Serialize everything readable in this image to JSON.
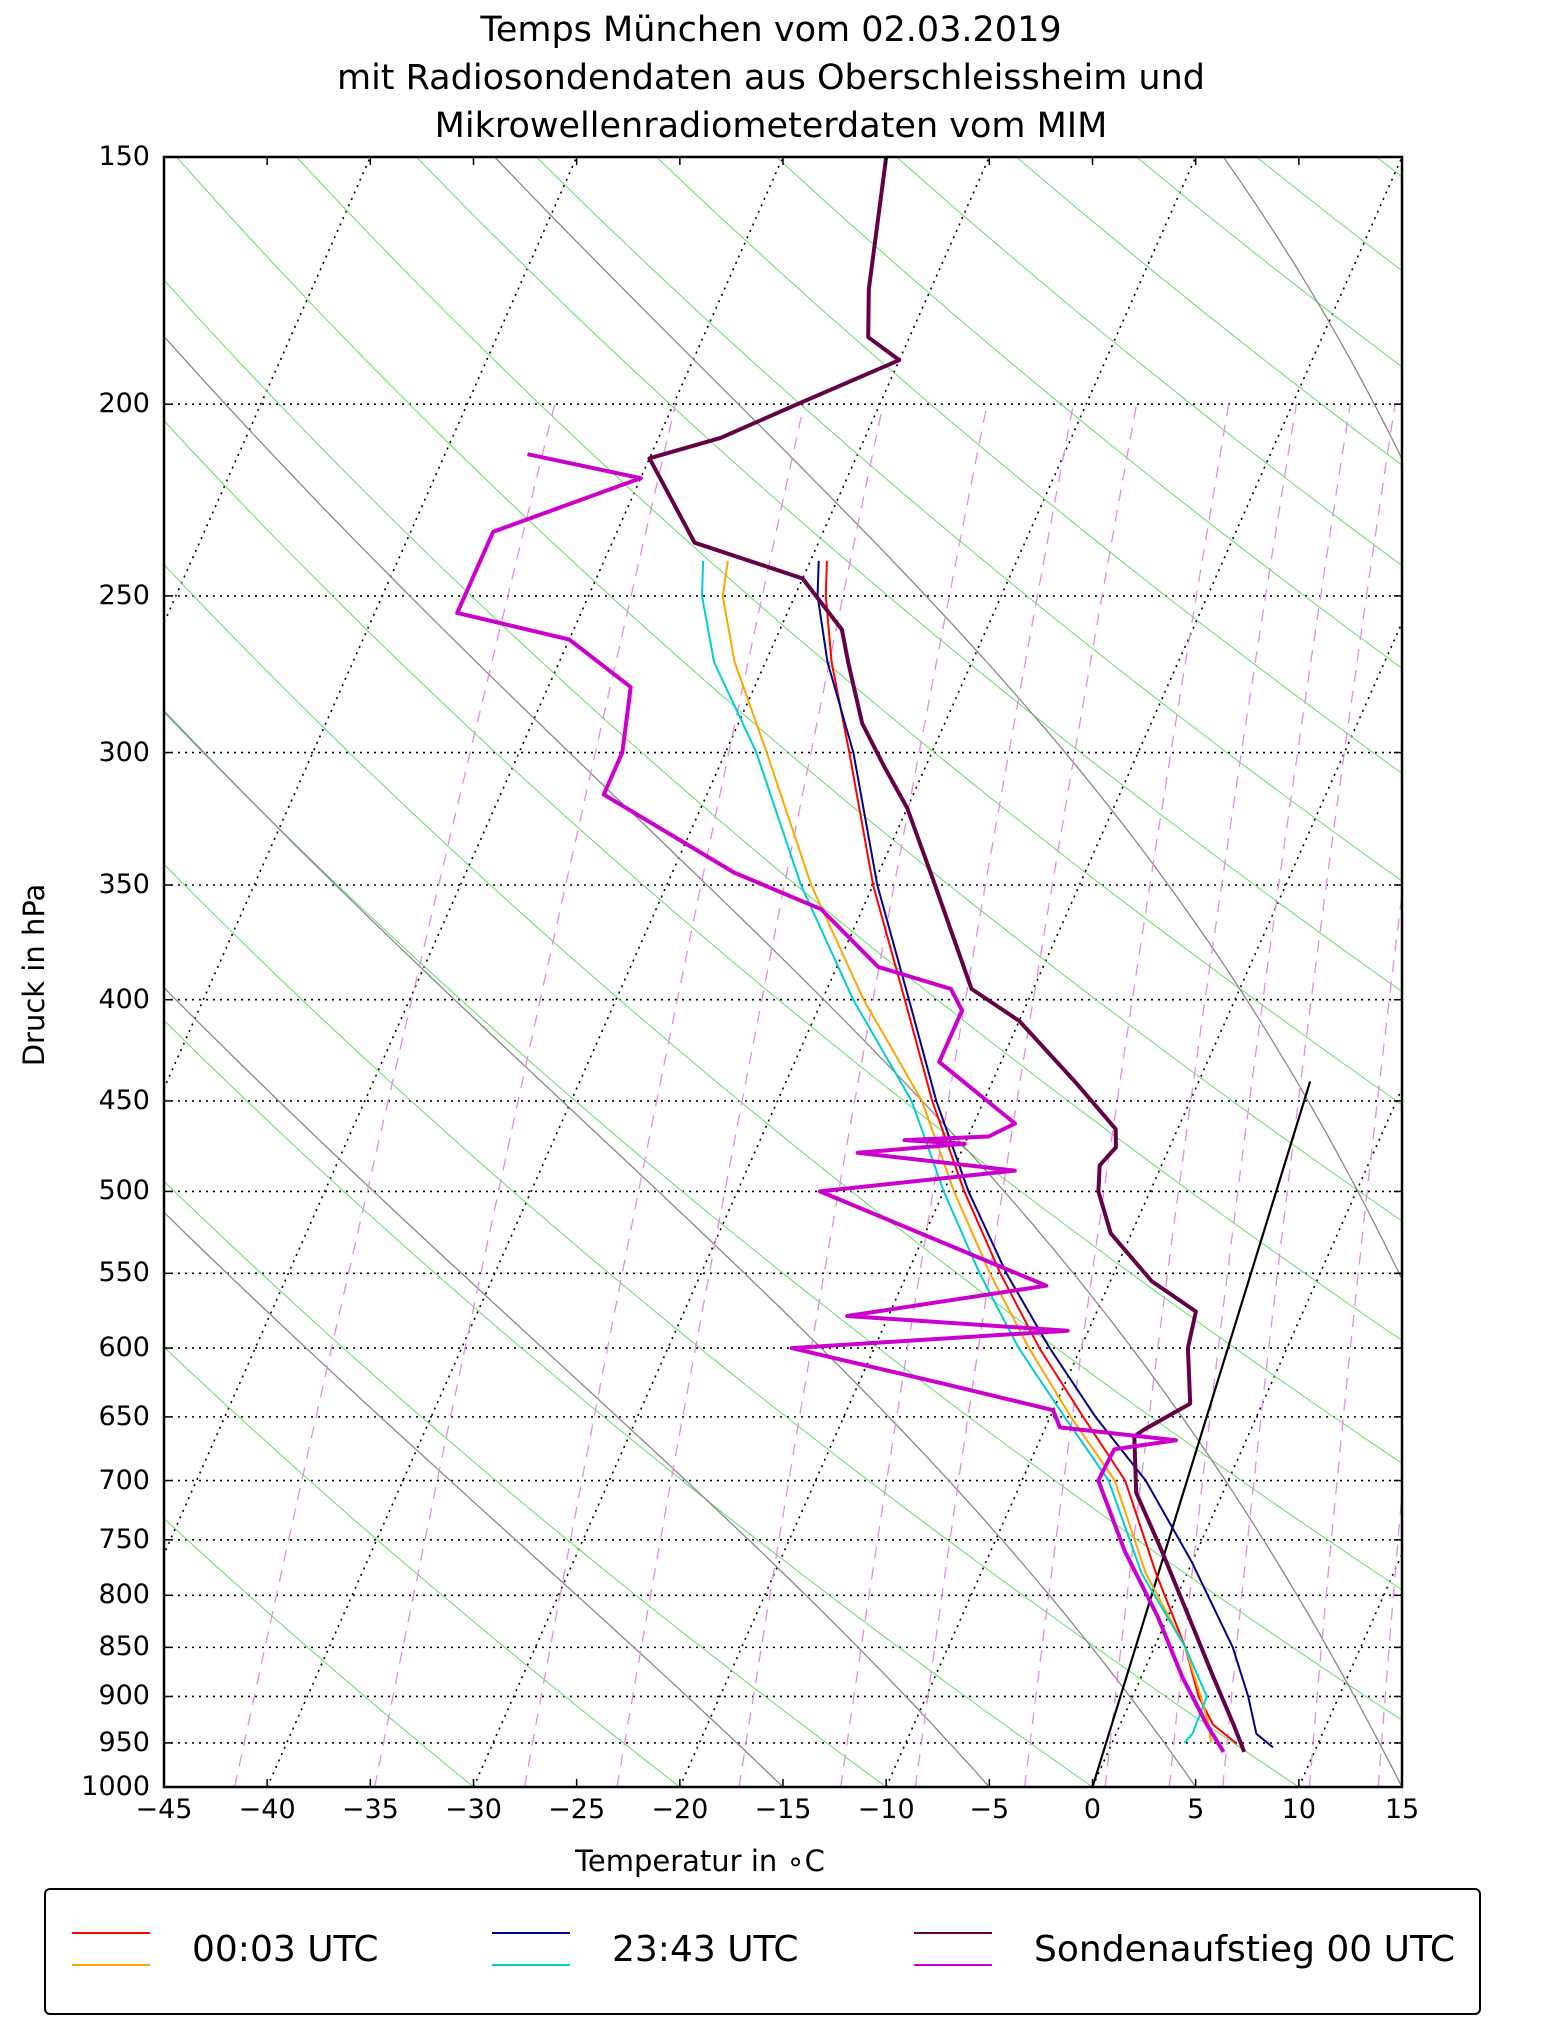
{
  "title": {
    "line1": "Temps München vom 02.03.2019",
    "line2": "mit Radiosondendaten aus Oberschleissheim und",
    "line3": "Mikrowellenradiometerdaten vom MIM"
  },
  "chart_data": {
    "type": "line",
    "subtype": "skew-T log-p diagram",
    "xlabel": "Temperatur in ∘C",
    "ylabel": "Druck in hPa",
    "xlim": [
      -45,
      15
    ],
    "ylim": [
      1000,
      150
    ],
    "x_ticks": [
      "−45",
      "−40",
      "−35",
      "−30",
      "−25",
      "−20",
      "−15",
      "−10",
      "−5",
      "0",
      "5",
      "10",
      "15"
    ],
    "y_ticks": [
      "150",
      "200",
      "250",
      "300",
      "350",
      "400",
      "450",
      "500",
      "550",
      "600",
      "650",
      "700",
      "750",
      "800",
      "850",
      "900",
      "950",
      "1000"
    ],
    "grid": true,
    "legend_position": "bottom",
    "series": [
      {
        "name": "00:03 UTC (Temperatur)",
        "color": "#ff0000",
        "points": [
          [
            6.0,
            950
          ],
          [
            4.5,
            930
          ],
          [
            3.2,
            900
          ],
          [
            1.5,
            850
          ],
          [
            -1.5,
            780
          ],
          [
            -5,
            700
          ],
          [
            -8.4,
            650
          ],
          [
            -12,
            600
          ],
          [
            -15.5,
            550
          ],
          [
            -19,
            500
          ],
          [
            -22.5,
            450
          ],
          [
            -26,
            400
          ],
          [
            -30,
            350
          ],
          [
            -34,
            300
          ],
          [
            -36.8,
            270
          ],
          [
            -38.5,
            250
          ],
          [
            -39.2,
            240
          ]
        ]
      },
      {
        "name": "00:03 UTC (Taupunkt)",
        "color": "#ffa500",
        "points": [
          [
            4.8,
            950
          ],
          [
            4.3,
            930
          ],
          [
            3.3,
            900
          ],
          [
            1.5,
            850
          ],
          [
            -2,
            780
          ],
          [
            -5.5,
            700
          ],
          [
            -9,
            650
          ],
          [
            -12.5,
            600
          ],
          [
            -16,
            550
          ],
          [
            -19.5,
            500
          ],
          [
            -23,
            450
          ],
          [
            -28,
            400
          ],
          [
            -33,
            350
          ],
          [
            -38,
            300
          ],
          [
            -41.5,
            270
          ],
          [
            -43.5,
            250
          ],
          [
            -44,
            240
          ]
        ]
      },
      {
        "name": "23:43 UTC (Temperatur)",
        "color": "#00008b",
        "points": [
          [
            7.9,
            955
          ],
          [
            6.8,
            940
          ],
          [
            5.6,
            900
          ],
          [
            3.8,
            850
          ],
          [
            0.0,
            770
          ],
          [
            -4.0,
            700
          ],
          [
            -7.8,
            650
          ],
          [
            -11.5,
            600
          ],
          [
            -15.2,
            550
          ],
          [
            -18.8,
            500
          ],
          [
            -22.3,
            450
          ],
          [
            -25.8,
            400
          ],
          [
            -29.8,
            350
          ],
          [
            -33.8,
            300
          ],
          [
            -37.0,
            270
          ],
          [
            -38.9,
            250
          ],
          [
            -39.6,
            240
          ]
        ]
      },
      {
        "name": "23:43 UTC (Taupunkt)",
        "color": "#00ced1",
        "points": [
          [
            3.5,
            950
          ],
          [
            3.7,
            940
          ],
          [
            3.6,
            900
          ],
          [
            1.5,
            850
          ],
          [
            -2.2,
            780
          ],
          [
            -5.8,
            700
          ],
          [
            -9.3,
            650
          ],
          [
            -13,
            600
          ],
          [
            -16.5,
            550
          ],
          [
            -20,
            500
          ],
          [
            -23.5,
            450
          ],
          [
            -28.5,
            400
          ],
          [
            -33.5,
            350
          ],
          [
            -38.5,
            300
          ],
          [
            -42.5,
            270
          ],
          [
            -44.5,
            250
          ],
          [
            -45.2,
            240
          ]
        ]
      },
      {
        "name": "Sondenaufstieg 00 UTC (Temperatur)",
        "color": "#640046",
        "points": [
          [
            6.6,
            960
          ],
          [
            5.5,
            930
          ],
          [
            3.5,
            880
          ],
          [
            1.0,
            820
          ],
          [
            -1.7,
            760
          ],
          [
            -4.2,
            710
          ],
          [
            -5.5,
            665
          ],
          [
            -5.2,
            660
          ],
          [
            -3.5,
            640
          ],
          [
            -4.8,
            600
          ],
          [
            -5.2,
            575
          ],
          [
            -8.0,
            555
          ],
          [
            -11.0,
            525
          ],
          [
            -12.5,
            500
          ],
          [
            -13.0,
            485
          ],
          [
            -12.6,
            475
          ],
          [
            -13.0,
            465
          ],
          [
            -16,
            440
          ],
          [
            -20,
            410
          ],
          [
            -23,
            395
          ],
          [
            -27,
            350
          ],
          [
            -30,
            320
          ],
          [
            -32,
            305
          ],
          [
            -34,
            290
          ],
          [
            -36,
            270
          ],
          [
            -37,
            260
          ],
          [
            -40,
            245
          ],
          [
            -46,
            235
          ],
          [
            -50,
            213
          ],
          [
            -47,
            208
          ],
          [
            -44,
            200
          ],
          [
            -40,
            190
          ],
          [
            -42,
            185
          ],
          [
            -43,
            175
          ],
          [
            -44,
            162
          ],
          [
            -45,
            150
          ]
        ]
      },
      {
        "name": "Sondenaufstieg 00 UTC (Taupunkt)",
        "color": "#cc00cc",
        "points": [
          [
            5.6,
            960
          ],
          [
            4.2,
            930
          ],
          [
            2.0,
            880
          ],
          [
            -0.5,
            820
          ],
          [
            -3.5,
            760
          ],
          [
            -6.3,
            700
          ],
          [
            -6.2,
            675
          ],
          [
            -3.4,
            668
          ],
          [
            -9.3,
            658
          ],
          [
            -10,
            645
          ],
          [
            -16,
            625
          ],
          [
            -24,
            600
          ],
          [
            -11,
            588
          ],
          [
            -22,
            578
          ],
          [
            -13,
            558
          ],
          [
            -26,
            500
          ],
          [
            -17,
            488
          ],
          [
            -25,
            478
          ],
          [
            -20,
            473
          ],
          [
            -23,
            471
          ],
          [
            -19,
            469
          ],
          [
            -18,
            462
          ],
          [
            -23,
            430
          ],
          [
            -23,
            405
          ],
          [
            -24,
            395
          ],
          [
            -28,
            385
          ],
          [
            -32,
            360
          ],
          [
            -37,
            345
          ],
          [
            -45,
            315
          ],
          [
            -45,
            300
          ],
          [
            -46,
            278
          ],
          [
            -50,
            263
          ],
          [
            -56,
            255
          ],
          [
            -56,
            232
          ],
          [
            -50,
            218
          ],
          [
            -56,
            212
          ]
        ]
      }
    ],
    "background_lines": {
      "isotherms_dotted": true,
      "dry_adiabats": "green",
      "moist_adiabats": "gray",
      "mixing_ratio_lines": "violet dashed"
    }
  },
  "legend": {
    "entries": [
      {
        "label": "00:03 UTC",
        "color_temp": "#ff0000",
        "color_dew": "#ffa500"
      },
      {
        "label": "23:43 UTC",
        "color_temp": "#00008b",
        "color_dew": "#00ced1"
      },
      {
        "label": "Sondenaufstieg 00 UTC",
        "color_temp": "#640046",
        "color_dew": "#cc00cc"
      }
    ]
  }
}
